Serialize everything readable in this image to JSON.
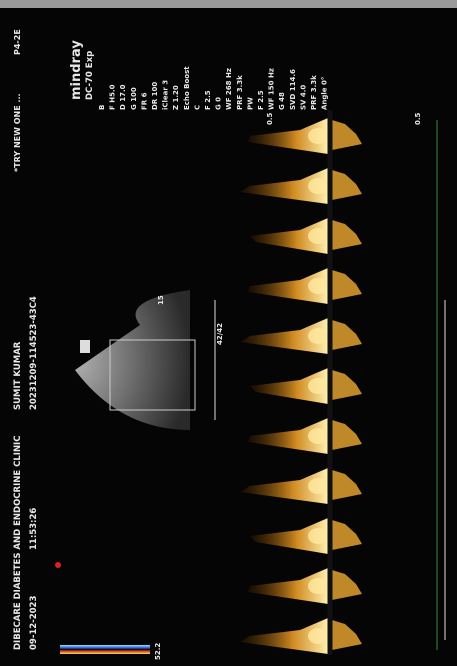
{
  "header": {
    "clinic": "DIBECARE DIABETES AND ENDOCRINE CLINIC",
    "date": "09-12-2023",
    "time": "11:53:26",
    "patient": "SUMIT KUMAR",
    "exam_id": "20231209-114523-43C4",
    "preset": "*TRY NEW ONE ...",
    "probe": "P4-2E"
  },
  "brand": "mindray",
  "model": "DC-70 Exp",
  "params": [
    "B",
    "F H5.0",
    "D 17.0",
    "G 100",
    "FR 6",
    "DR 100",
    "iClear 3",
    "Z 1.20",
    "Echo Boost",
    "C",
    "F 2.5",
    "G 0",
    "WF 268 Hz",
    "PRF 3.3k",
    "PW",
    "F 2.5",
    "WF 150 Hz",
    "G 48",
    "SVD 114.6",
    "SV 4.0",
    "PRF 3.3k",
    "Angle 0°"
  ],
  "scale": {
    "top": "0.5",
    "bottom": "0.5",
    "color_max": "52.2",
    "sv_depth": "42/42",
    "sector_depth": "15"
  }
}
